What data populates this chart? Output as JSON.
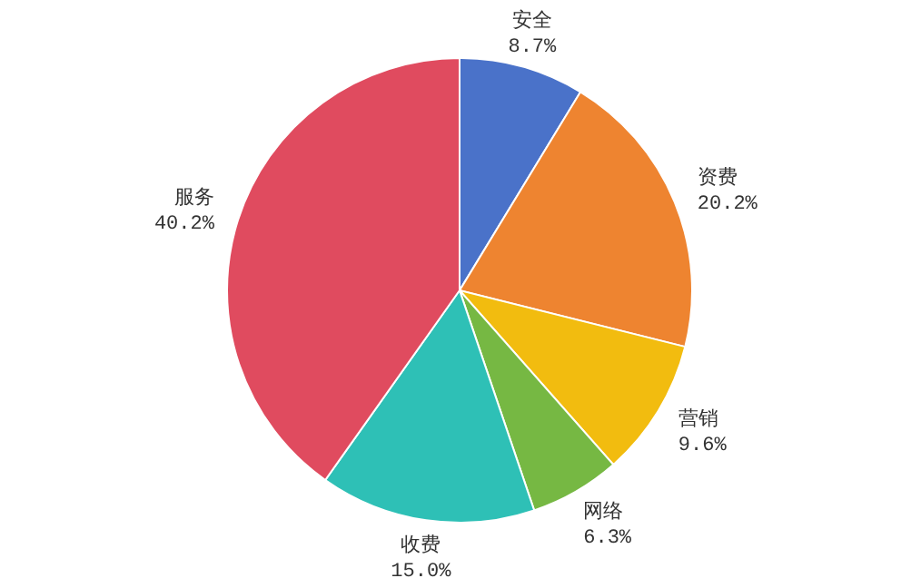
{
  "chart_data": {
    "type": "pie",
    "categories": [
      "安全",
      "资费",
      "营销",
      "网络",
      "收费",
      "服务"
    ],
    "values": [
      8.7,
      20.2,
      9.6,
      6.3,
      15.0,
      40.2
    ],
    "value_labels": [
      "8.7%",
      "20.2%",
      "9.6%",
      "6.3%",
      "15.0%",
      "40.2%"
    ],
    "colors": [
      "#4a72c9",
      "#ee8430",
      "#f2bc0f",
      "#76b843",
      "#2ec0b6",
      "#e04b5f"
    ],
    "legend": false
  }
}
